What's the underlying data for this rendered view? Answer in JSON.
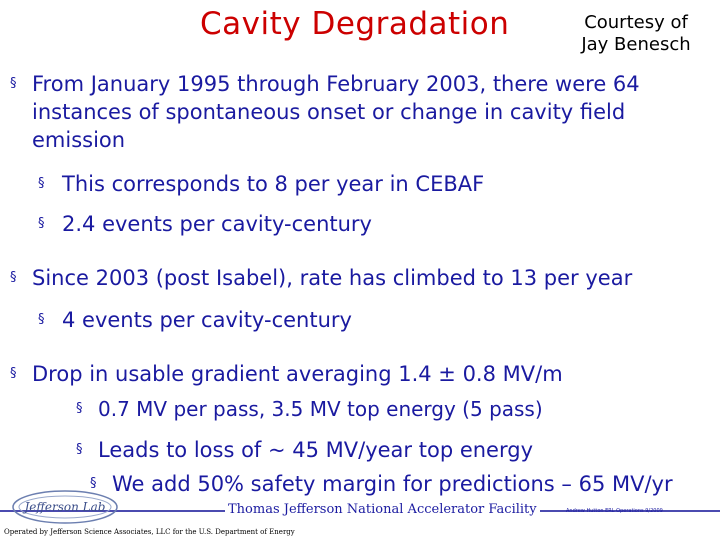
{
  "slide": {
    "title": "Cavity Degradation",
    "courtesy_line1": "Courtesy of",
    "courtesy_line2": "Jay Benesch"
  },
  "bullets": {
    "b1": "From January 1995 through February 2003, there were 64 instances of spontaneous onset or change in cavity field emission",
    "b1a": "This corresponds to 8 per year in CEBAF",
    "b1b": "2.4 events per cavity-century",
    "b2": "Since 2003 (post Isabel), rate has climbed to 13 per year",
    "b2a": "4 events per cavity-century",
    "b3": "Drop in usable gradient averaging 1.4 ± 0.8 MV/m",
    "b3a": "0.7 MV per pass, 3.5 MV top energy (5 pass)",
    "b4": "Leads to loss of ~ 45 MV/year top energy",
    "b4a": "We add 50% safety margin for predictions – 65 MV/yr"
  },
  "footer": {
    "logo_text": "Jefferson Lab",
    "lab_name": "Thomas Jefferson National Accelerator Facility",
    "small_right": "Andrew Hutton ERL Operations 9/2009",
    "operated_by": "Operated by Jefferson Science Associates, LLC for the U.S. Department of Energy"
  },
  "bullet_mark": "§",
  "colors": {
    "title": "#cc0000",
    "body": "#1a1aa0",
    "footer_line": "#4b4bb0"
  }
}
